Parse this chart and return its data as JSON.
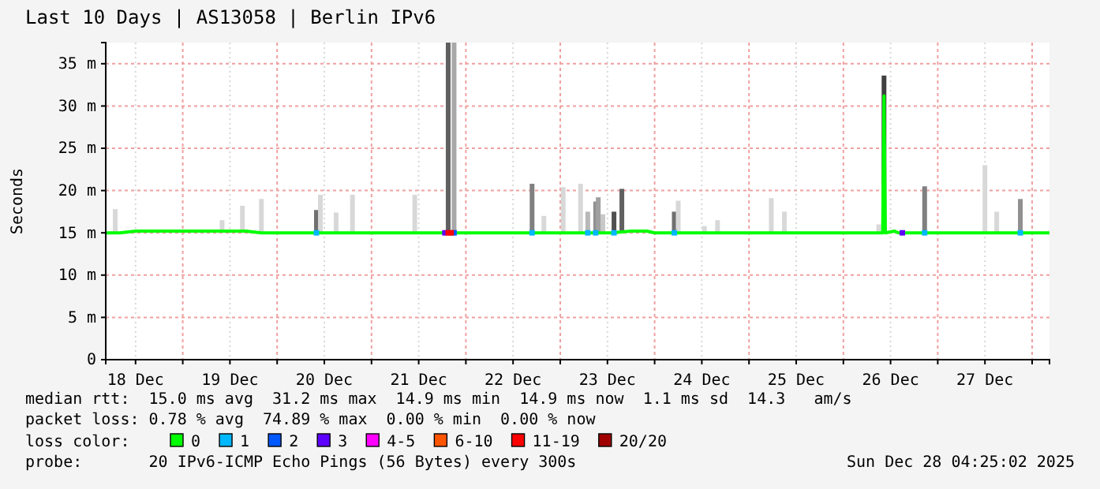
{
  "chart_data": {
    "type": "line",
    "title": "Last 10 Days | AS13058 | Berlin IPv6",
    "ylabel": "Seconds",
    "legend_title": "loss color:",
    "legend": "bottom",
    "grid": true,
    "line_style": "solid",
    "xlim": [
      "2025-12-18T04:25",
      "2025-12-28T04:25"
    ],
    "xticks": [
      {
        "value": "2025-12-18T12:00",
        "label": "18 Dec"
      },
      {
        "value": "2025-12-19T00:00",
        "label": null
      },
      {
        "value": "2025-12-19T12:00",
        "label": "19 Dec"
      },
      {
        "value": "2025-12-20T00:00",
        "label": null
      },
      {
        "value": "2025-12-20T12:00",
        "label": "20 Dec"
      },
      {
        "value": "2025-12-21T00:00",
        "label": null
      },
      {
        "value": "2025-12-21T12:00",
        "label": "21 Dec"
      },
      {
        "value": "2025-12-22T00:00",
        "label": null
      },
      {
        "value": "2025-12-22T12:00",
        "label": "22 Dec"
      },
      {
        "value": "2025-12-23T00:00",
        "label": null
      },
      {
        "value": "2025-12-23T12:00",
        "label": "23 Dec"
      },
      {
        "value": "2025-12-24T00:00",
        "label": null
      },
      {
        "value": "2025-12-24T12:00",
        "label": "24 Dec"
      },
      {
        "value": "2025-12-25T00:00",
        "label": null
      },
      {
        "value": "2025-12-25T12:00",
        "label": "25 Dec"
      },
      {
        "value": "2025-12-26T00:00",
        "label": null
      },
      {
        "value": "2025-12-26T12:00",
        "label": "26 Dec"
      },
      {
        "value": "2025-12-27T00:00",
        "label": null
      },
      {
        "value": "2025-12-27T12:00",
        "label": "27 Dec"
      },
      {
        "value": "2025-12-28T00:00",
        "label": null
      }
    ],
    "ylim": [
      0,
      37.5
    ],
    "yticks": [
      0,
      {
        "value": 5,
        "label": "5 m"
      },
      {
        "value": 10,
        "label": "10 m"
      },
      {
        "value": 15,
        "label": "15 m"
      },
      {
        "value": 20,
        "label": "20 m"
      },
      {
        "value": 25,
        "label": "25 m"
      },
      {
        "value": 30,
        "label": "30 m"
      },
      {
        "value": 35,
        "label": "35 m"
      }
    ],
    "series": [
      {
        "type": "bar",
        "x": [
          "2025-12-18T06:50",
          "2025-12-19T10:00",
          "2025-12-19T15:10",
          "2025-12-19T20:00",
          "2025-12-20T10:00",
          "2025-12-20T11:00",
          "2025-12-20T15:00",
          "2025-12-20T19:10",
          "2025-12-21T11:00",
          "2025-12-21T19:30",
          "2025-12-21T21:00",
          "2025-12-22T16:50",
          "2025-12-22T19:50",
          "2025-12-23T00:45",
          "2025-12-23T05:10",
          "2025-12-23T07:00",
          "2025-12-23T09:00",
          "2025-12-23T09:40",
          "2025-12-23T10:50",
          "2025-12-23T13:40",
          "2025-12-23T15:40",
          "2025-12-24T05:00",
          "2025-12-24T06:00",
          "2025-12-24T12:40",
          "2025-12-24T16:00",
          "2025-12-25T05:40",
          "2025-12-25T09:00",
          "2025-12-26T09:00",
          "2025-12-26T10:20",
          "2025-12-26T20:40",
          "2025-12-27T12:00",
          "2025-12-27T15:00",
          "2025-12-27T21:00"
        ],
        "base": [
          15,
          15,
          15,
          15,
          15,
          15,
          15,
          15,
          15,
          15,
          15,
          15,
          15,
          15,
          15,
          15,
          15,
          15,
          15,
          15,
          15,
          15,
          15,
          15,
          15,
          15,
          15,
          15,
          15,
          15,
          15,
          15,
          15
        ],
        "values": [
          2.8,
          1.5,
          3.2,
          4.0,
          2.7,
          4.5,
          2.4,
          4.5,
          4.5,
          22.5,
          22.5,
          5.8,
          2.0,
          5.4,
          5.8,
          2.5,
          3.7,
          4.2,
          2.2,
          2.5,
          5.2,
          2.5,
          3.8,
          0.8,
          1.5,
          4.1,
          2.5,
          1.0,
          18.6,
          5.5,
          8.0,
          2.5,
          4.0
        ],
        "colors": [
          "#d8d8d8",
          "#d8d8d8",
          "#d8d8d8",
          "#d8d8d8",
          "#707070",
          "#d8d8d8",
          "#d8d8d8",
          "#d8d8d8",
          "#d8d8d8",
          "#606060",
          "#a8a8a8",
          "#808080",
          "#d8d8d8",
          "#d8d8d8",
          "#d8d8d8",
          "#b8b8b8",
          "#909090",
          "#a0a0a0",
          "#c8c8c8",
          "#505050",
          "#606060",
          "#707070",
          "#d8d8d8",
          "#d8d8d8",
          "#d8d8d8",
          "#d8d8d8",
          "#d8d8d8",
          "#d8d8d8",
          "#404040",
          "#808080",
          "#d8d8d8",
          "#d8d8d8",
          "#909090"
        ]
      },
      {
        "name": "0",
        "color": "#00ff00",
        "x": [
          "2025-12-18T04:25",
          "2025-12-18T08:00",
          "2025-12-18T12:00",
          "2025-12-19T06:00",
          "2025-12-19T16:00",
          "2025-12-19T20:00",
          "2025-12-20T12:00",
          "2025-12-23T13:00",
          "2025-12-23T18:00",
          "2025-12-23T22:00",
          "2025-12-24T00:00",
          "2025-12-26T10:00",
          "2025-12-26T10:20",
          "2025-12-26T10:40",
          "2025-12-26T13:00",
          "2025-12-26T14:00",
          "2025-12-28T04:25"
        ],
        "values": [
          15.0,
          15.0,
          15.2,
          15.2,
          15.2,
          15.0,
          15.0,
          15.0,
          15.2,
          15.2,
          15.0,
          15.0,
          31.2,
          15.0,
          15.2,
          15.0,
          15.0
        ]
      },
      {
        "type": "scatter",
        "marker": "square",
        "name": "1",
        "color": "#00b8ff",
        "x": [
          "2025-12-20T10:00",
          "2025-12-22T16:50",
          "2025-12-23T07:00",
          "2025-12-23T09:00",
          "2025-12-23T13:40",
          "2025-12-24T05:00",
          "2025-12-26T20:40",
          "2025-12-27T21:00"
        ],
        "values": [
          15,
          15,
          15,
          15,
          15,
          15,
          15,
          15
        ]
      },
      {
        "type": "scatter",
        "marker": "square",
        "name": "2",
        "color": "#0059ff",
        "x": [
          "2025-12-21T21:00"
        ],
        "values": [
          15
        ]
      },
      {
        "type": "scatter",
        "marker": "square",
        "name": "3",
        "color": "#5e00ff",
        "x": [
          "2025-12-21T18:40",
          "2025-12-26T15:00"
        ],
        "values": [
          15,
          15
        ]
      },
      {
        "type": "scatter",
        "name": "4-5",
        "color": "#ff00ff"
      },
      {
        "type": "scatter",
        "name": "6-10",
        "color": "#ff5500"
      },
      {
        "type": "scatter",
        "marker": "square",
        "name": "11-19",
        "color": "#ff0000",
        "x": [
          "2025-12-21T19:30",
          "2025-12-21T20:15"
        ],
        "values": [
          15,
          15
        ]
      },
      {
        "type": "scatter",
        "name": "20/20",
        "color": "#a10000"
      }
    ],
    "annotations": [
      "median rtt:  15.0 ms avg  31.2 ms max  14.9 ms min  14.9 ms now  1.1 ms sd  14.3   am/s",
      "packet loss: 0.78 % avg  74.89 % max  0.00 % min  0.00 % now",
      "probe:       20 IPv6-ICMP Echo Pings (56 Bytes) every 300s",
      "Sun Dec 28 04:25:02 2025"
    ]
  }
}
